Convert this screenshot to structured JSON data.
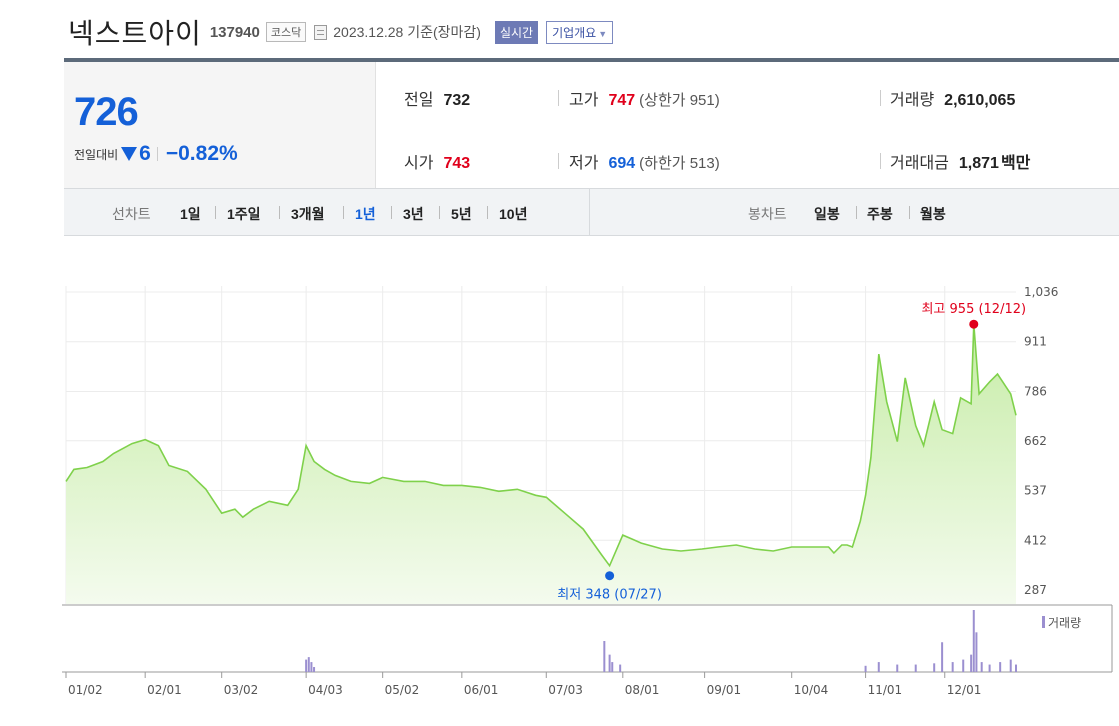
{
  "header": {
    "name": "넥스트아이",
    "code": "137940",
    "market": "코스닥",
    "date": "2023.12.28 기준(장마감)",
    "realtime_label": "실시간",
    "overview_label": "기업개요"
  },
  "summary": {
    "price": "726",
    "change_label": "전일대비",
    "change_value": "6",
    "change_pct": "−0.82%",
    "prev_close_label": "전일",
    "prev_close": "732",
    "high_label": "고가",
    "high": "747",
    "upper_limit": "(상한가 951)",
    "volume_label": "거래량",
    "volume": "2,610,065",
    "open_label": "시가",
    "open": "743",
    "low_label": "저가",
    "low": "694",
    "lower_limit": "(하한가 513)",
    "amount_label": "거래대금",
    "amount": "1,871",
    "amount_unit": "백만"
  },
  "tabs": {
    "line_label": "선차트",
    "periods": [
      "1일",
      "1주일",
      "3개월",
      "1년",
      "3년",
      "5년",
      "10년"
    ],
    "active_period": "1년",
    "candle_label": "봉차트",
    "candles": [
      "일봉",
      "주봉",
      "월봉"
    ]
  },
  "colors": {
    "up": "#e0001b",
    "down": "#1460d8",
    "line": "#7fd14b",
    "volume_bar": "#9b8fd0",
    "accent": "#5c6a7a"
  },
  "chart_data": {
    "type": "area",
    "y_ticks": [
      "1,036",
      "911",
      "786",
      "662",
      "537",
      "412",
      "287"
    ],
    "ylim": [
      287,
      1036
    ],
    "x_ticks": [
      "01/02",
      "02/01",
      "03/02",
      "04/03",
      "05/02",
      "06/01",
      "07/03",
      "08/01",
      "09/01",
      "10/04",
      "11/01",
      "12/01"
    ],
    "high_annotation": "최고 955 (12/12)",
    "low_annotation": "최저 348 (07/27)",
    "volume_legend": "거래량",
    "series": [
      {
        "name": "",
        "x": [
          "01/02",
          "01/05",
          "01/10",
          "01/16",
          "01/20",
          "01/27",
          "02/01",
          "02/06",
          "02/10",
          "02/17",
          "02/24",
          "03/02",
          "03/07",
          "03/10",
          "03/14",
          "03/20",
          "03/27",
          "03/31",
          "04/03",
          "04/06",
          "04/10",
          "04/14",
          "04/20",
          "04/27",
          "05/02",
          "05/10",
          "05/18",
          "05/25",
          "06/01",
          "06/08",
          "06/15",
          "06/22",
          "06/29",
          "07/03",
          "07/10",
          "07/17",
          "07/24",
          "07/27",
          "07/31",
          "08/01",
          "08/08",
          "08/16",
          "08/23",
          "08/31",
          "09/06",
          "09/13",
          "09/20",
          "09/27",
          "10/04",
          "10/11",
          "10/18",
          "10/20",
          "10/23",
          "10/25",
          "10/27",
          "10/30",
          "11/01",
          "11/03",
          "11/06",
          "11/09",
          "11/13",
          "11/16",
          "11/20",
          "11/23",
          "11/27",
          "11/30",
          "12/04",
          "12/07",
          "12/11",
          "12/12",
          "12/14",
          "12/18",
          "12/21",
          "12/26",
          "12/28"
        ],
        "values": [
          560,
          590,
          595,
          610,
          630,
          655,
          665,
          650,
          600,
          585,
          540,
          480,
          490,
          470,
          490,
          510,
          500,
          540,
          650,
          610,
          590,
          575,
          560,
          555,
          570,
          560,
          560,
          550,
          550,
          545,
          535,
          540,
          525,
          520,
          480,
          440,
          375,
          348,
          410,
          425,
          405,
          390,
          385,
          390,
          395,
          400,
          390,
          385,
          395,
          395,
          395,
          380,
          400,
          400,
          395,
          460,
          525,
          620,
          880,
          760,
          660,
          820,
          700,
          650,
          760,
          690,
          680,
          770,
          755,
          955,
          780,
          810,
          830,
          780,
          726
        ]
      }
    ],
    "volume": {
      "name": "거래량",
      "x": [
        "04/03",
        "04/04",
        "04/05",
        "04/06",
        "07/25",
        "07/27",
        "07/28",
        "07/31",
        "11/01",
        "11/06",
        "11/13",
        "11/20",
        "11/27",
        "11/30",
        "12/04",
        "12/08",
        "12/11",
        "12/12",
        "12/13",
        "12/15",
        "12/18",
        "12/22",
        "12/26",
        "12/28"
      ],
      "values": [
        10,
        12,
        8,
        4,
        25,
        14,
        8,
        6,
        5,
        8,
        6,
        6,
        7,
        24,
        8,
        10,
        14,
        50,
        32,
        8,
        6,
        8,
        10,
        6
      ]
    }
  }
}
